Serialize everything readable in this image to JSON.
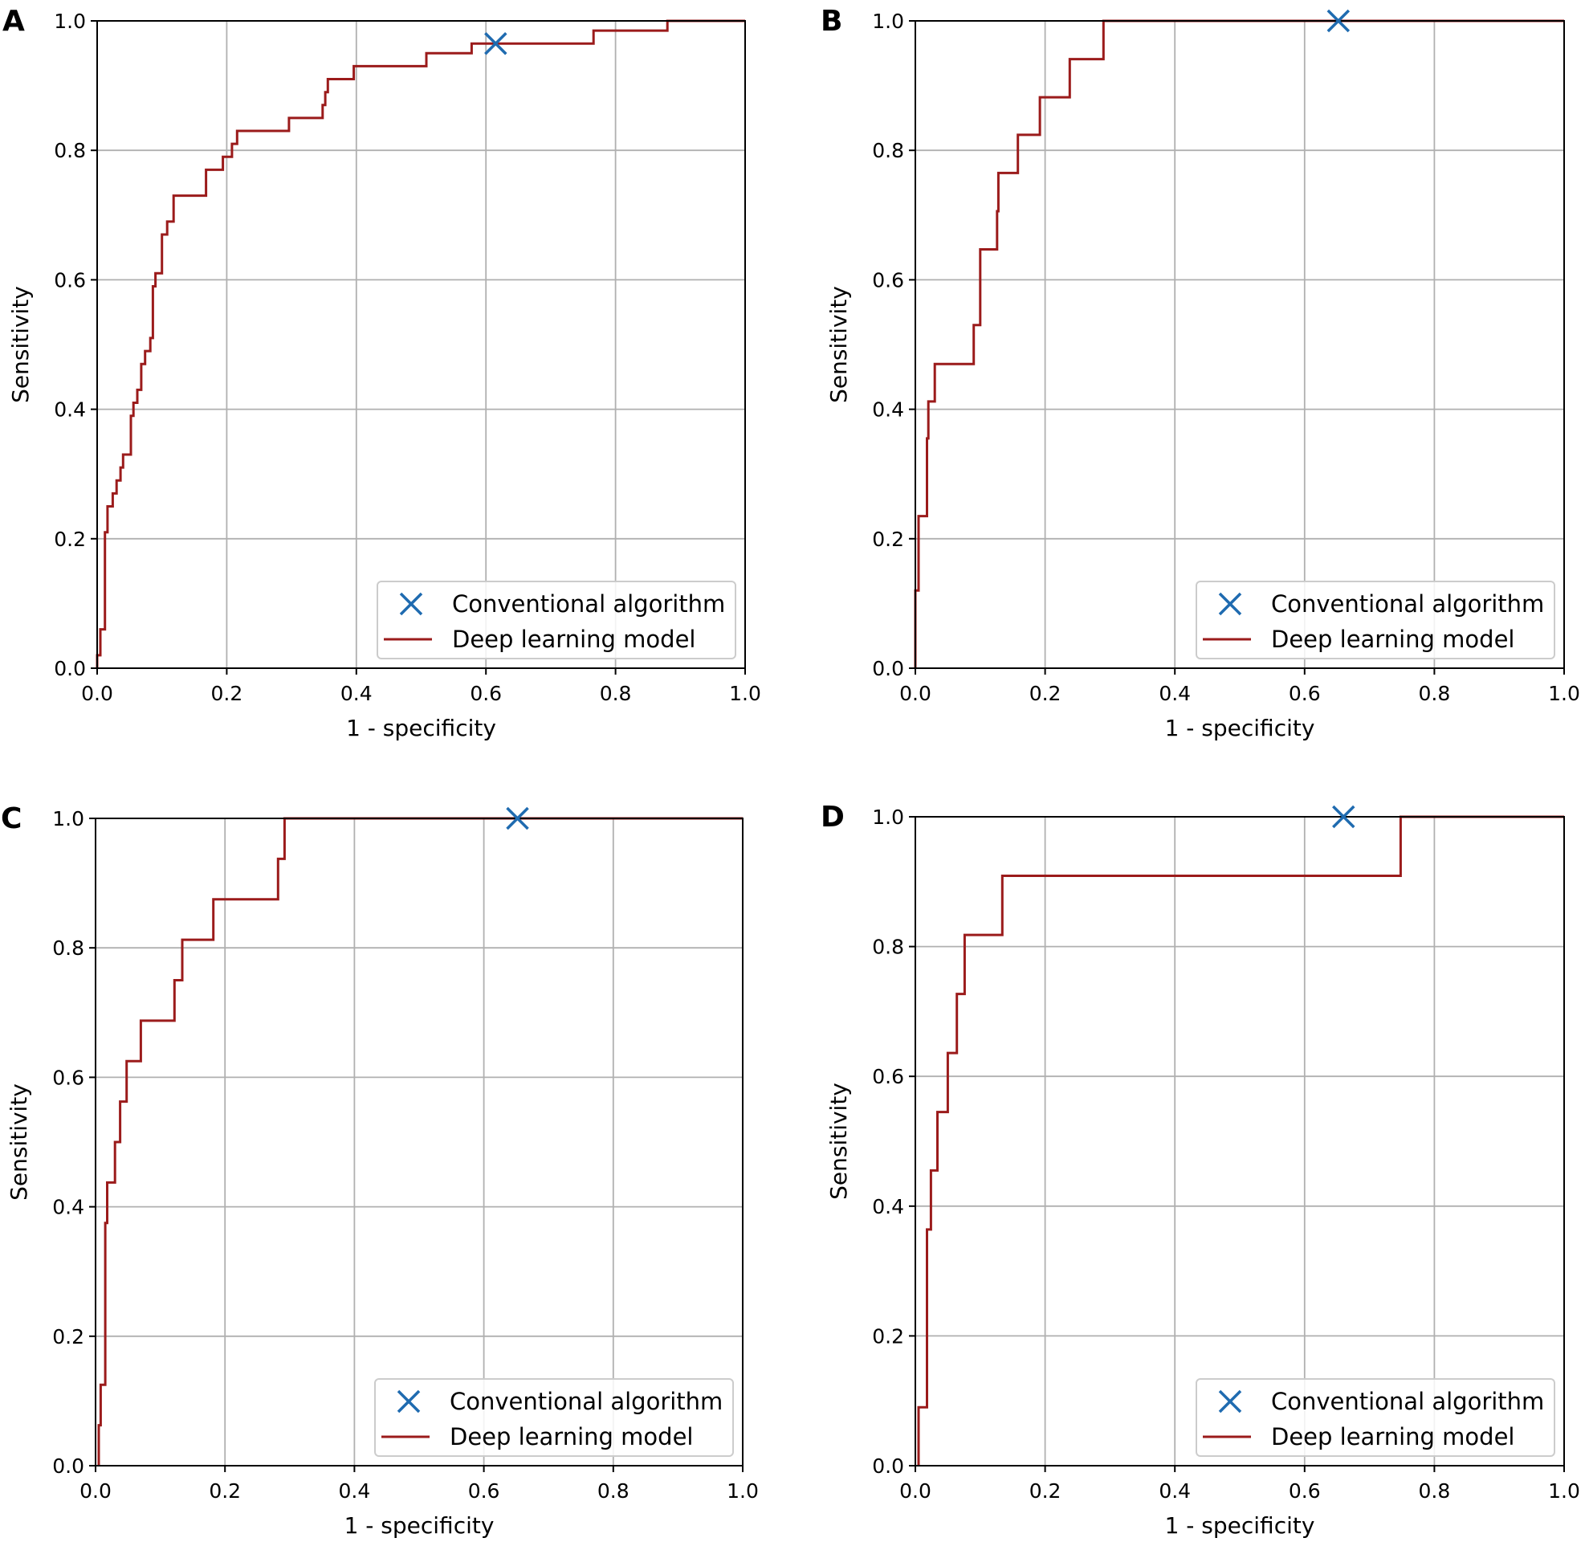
{
  "colors": {
    "model_line": "#9b1b1b",
    "marker": "#1f6bb0",
    "grid": "#b0b0b0"
  },
  "chart_data": [
    {
      "panel": "A",
      "type": "line",
      "xlabel": "1 - specificity",
      "ylabel": "Sensitivity",
      "xlim": [
        0,
        1
      ],
      "ylim": [
        0,
        1
      ],
      "xticks": [
        "0.0",
        "0.2",
        "0.4",
        "0.6",
        "0.8",
        "1.0"
      ],
      "yticks": [
        "0.0",
        "0.2",
        "0.4",
        "0.6",
        "0.8",
        "1.0"
      ],
      "grid": true,
      "legend": {
        "position": "lower-right",
        "entries": [
          "Conventional algorithm",
          "Deep learning model"
        ]
      },
      "series": [
        {
          "name": "Deep learning model",
          "kind": "roc-step",
          "points": [
            [
              0,
              0
            ],
            [
              0,
              0.02
            ],
            [
              0.005,
              0.02
            ],
            [
              0.005,
              0.06
            ],
            [
              0.012,
              0.06
            ],
            [
              0.012,
              0.21
            ],
            [
              0.016,
              0.21
            ],
            [
              0.016,
              0.25
            ],
            [
              0.024,
              0.25
            ],
            [
              0.024,
              0.27
            ],
            [
              0.03,
              0.27
            ],
            [
              0.03,
              0.29
            ],
            [
              0.036,
              0.29
            ],
            [
              0.036,
              0.31
            ],
            [
              0.04,
              0.31
            ],
            [
              0.04,
              0.33
            ],
            [
              0.052,
              0.33
            ],
            [
              0.052,
              0.39
            ],
            [
              0.056,
              0.39
            ],
            [
              0.056,
              0.41
            ],
            [
              0.062,
              0.41
            ],
            [
              0.062,
              0.43
            ],
            [
              0.068,
              0.43
            ],
            [
              0.068,
              0.47
            ],
            [
              0.074,
              0.47
            ],
            [
              0.074,
              0.49
            ],
            [
              0.082,
              0.49
            ],
            [
              0.082,
              0.51
            ],
            [
              0.086,
              0.51
            ],
            [
              0.086,
              0.59
            ],
            [
              0.09,
              0.59
            ],
            [
              0.09,
              0.61
            ],
            [
              0.1,
              0.61
            ],
            [
              0.1,
              0.67
            ],
            [
              0.108,
              0.67
            ],
            [
              0.108,
              0.69
            ],
            [
              0.118,
              0.69
            ],
            [
              0.118,
              0.73
            ],
            [
              0.168,
              0.73
            ],
            [
              0.168,
              0.77
            ],
            [
              0.194,
              0.77
            ],
            [
              0.194,
              0.79
            ],
            [
              0.208,
              0.79
            ],
            [
              0.208,
              0.81
            ],
            [
              0.216,
              0.81
            ],
            [
              0.216,
              0.83
            ],
            [
              0.296,
              0.83
            ],
            [
              0.296,
              0.85
            ],
            [
              0.348,
              0.85
            ],
            [
              0.348,
              0.87
            ],
            [
              0.352,
              0.87
            ],
            [
              0.352,
              0.89
            ],
            [
              0.356,
              0.89
            ],
            [
              0.356,
              0.91
            ],
            [
              0.396,
              0.91
            ],
            [
              0.396,
              0.93
            ],
            [
              0.508,
              0.93
            ],
            [
              0.508,
              0.95
            ],
            [
              0.578,
              0.95
            ],
            [
              0.578,
              0.965
            ],
            [
              0.766,
              0.965
            ],
            [
              0.766,
              0.985
            ],
            [
              0.88,
              0.985
            ],
            [
              0.88,
              1.0
            ],
            [
              1.0,
              1.0
            ]
          ]
        },
        {
          "name": "Conventional algorithm",
          "kind": "marker",
          "x": 0.615,
          "y": 0.965
        }
      ]
    },
    {
      "panel": "B",
      "type": "line",
      "xlabel": "1 - specificity",
      "ylabel": "Sensitivity",
      "xlim": [
        0,
        1
      ],
      "ylim": [
        0,
        1
      ],
      "xticks": [
        "0.0",
        "0.2",
        "0.4",
        "0.6",
        "0.8",
        "1.0"
      ],
      "yticks": [
        "0.0",
        "0.2",
        "0.4",
        "0.6",
        "0.8",
        "1.0"
      ],
      "grid": true,
      "legend": {
        "position": "lower-right",
        "entries": [
          "Conventional algorithm",
          "Deep learning model"
        ]
      },
      "series": [
        {
          "name": "Deep learning model",
          "kind": "roc-step",
          "points": [
            [
              0,
              0
            ],
            [
              0,
              0.12
            ],
            [
              0.005,
              0.12
            ],
            [
              0.005,
              0.235
            ],
            [
              0.018,
              0.235
            ],
            [
              0.018,
              0.355
            ],
            [
              0.02,
              0.355
            ],
            [
              0.02,
              0.412
            ],
            [
              0.03,
              0.412
            ],
            [
              0.03,
              0.47
            ],
            [
              0.09,
              0.47
            ],
            [
              0.09,
              0.53
            ],
            [
              0.1,
              0.53
            ],
            [
              0.1,
              0.647
            ],
            [
              0.126,
              0.647
            ],
            [
              0.126,
              0.706
            ],
            [
              0.128,
              0.706
            ],
            [
              0.128,
              0.765
            ],
            [
              0.158,
              0.765
            ],
            [
              0.158,
              0.824
            ],
            [
              0.192,
              0.824
            ],
            [
              0.192,
              0.882
            ],
            [
              0.238,
              0.882
            ],
            [
              0.238,
              0.941
            ],
            [
              0.29,
              0.941
            ],
            [
              0.29,
              1.0
            ],
            [
              1.0,
              1.0
            ]
          ]
        },
        {
          "name": "Conventional algorithm",
          "kind": "marker",
          "x": 0.652,
          "y": 1.0
        }
      ]
    },
    {
      "panel": "C",
      "type": "line",
      "xlabel": "1 - specificity",
      "ylabel": "Sensitivity",
      "xlim": [
        0,
        1
      ],
      "ylim": [
        0,
        1
      ],
      "xticks": [
        "0.0",
        "0.2",
        "0.4",
        "0.6",
        "0.8",
        "1.0"
      ],
      "yticks": [
        "0.0",
        "0.2",
        "0.4",
        "0.6",
        "0.8",
        "1.0"
      ],
      "grid": true,
      "legend": {
        "position": "lower-right",
        "entries": [
          "Conventional algorithm",
          "Deep learning model"
        ]
      },
      "series": [
        {
          "name": "Deep learning model",
          "kind": "roc-step",
          "points": [
            [
              0.005,
              0
            ],
            [
              0.005,
              0.0625
            ],
            [
              0.008,
              0.0625
            ],
            [
              0.008,
              0.125
            ],
            [
              0.015,
              0.125
            ],
            [
              0.015,
              0.375
            ],
            [
              0.018,
              0.375
            ],
            [
              0.018,
              0.4375
            ],
            [
              0.03,
              0.4375
            ],
            [
              0.03,
              0.5
            ],
            [
              0.038,
              0.5
            ],
            [
              0.038,
              0.5625
            ],
            [
              0.048,
              0.5625
            ],
            [
              0.048,
              0.625
            ],
            [
              0.07,
              0.625
            ],
            [
              0.07,
              0.6875
            ],
            [
              0.122,
              0.6875
            ],
            [
              0.122,
              0.75
            ],
            [
              0.134,
              0.75
            ],
            [
              0.134,
              0.8125
            ],
            [
              0.182,
              0.8125
            ],
            [
              0.182,
              0.875
            ],
            [
              0.282,
              0.875
            ],
            [
              0.282,
              0.9375
            ],
            [
              0.292,
              0.9375
            ],
            [
              0.292,
              1.0
            ],
            [
              1.0,
              1.0
            ]
          ]
        },
        {
          "name": "Conventional algorithm",
          "kind": "marker",
          "x": 0.652,
          "y": 1.0
        }
      ]
    },
    {
      "panel": "D",
      "type": "line",
      "xlabel": "1 - specificity",
      "ylabel": "Sensitivity",
      "xlim": [
        0,
        1
      ],
      "ylim": [
        0,
        1
      ],
      "xticks": [
        "0.0",
        "0.2",
        "0.4",
        "0.6",
        "0.8",
        "1.0"
      ],
      "yticks": [
        "0.0",
        "0.2",
        "0.4",
        "0.6",
        "0.8",
        "1.0"
      ],
      "grid": true,
      "legend": {
        "position": "lower-right",
        "entries": [
          "Conventional algorithm",
          "Deep learning model"
        ]
      },
      "series": [
        {
          "name": "Deep learning model",
          "kind": "roc-step",
          "points": [
            [
              0.005,
              0
            ],
            [
              0.005,
              0.09
            ],
            [
              0.018,
              0.09
            ],
            [
              0.018,
              0.364
            ],
            [
              0.024,
              0.364
            ],
            [
              0.024,
              0.455
            ],
            [
              0.034,
              0.455
            ],
            [
              0.034,
              0.545
            ],
            [
              0.05,
              0.545
            ],
            [
              0.05,
              0.636
            ],
            [
              0.064,
              0.636
            ],
            [
              0.064,
              0.727
            ],
            [
              0.076,
              0.727
            ],
            [
              0.076,
              0.818
            ],
            [
              0.134,
              0.818
            ],
            [
              0.134,
              0.909
            ],
            [
              0.748,
              0.909
            ],
            [
              0.748,
              1.0
            ],
            [
              1.0,
              1.0
            ]
          ]
        },
        {
          "name": "Conventional algorithm",
          "kind": "marker",
          "x": 0.66,
          "y": 1.0
        }
      ]
    }
  ]
}
